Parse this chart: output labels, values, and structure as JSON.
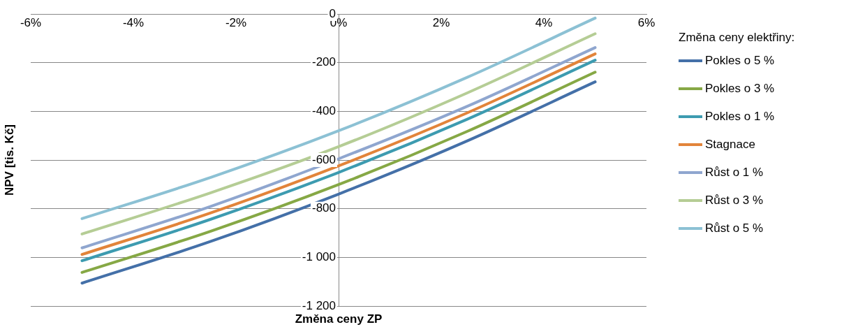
{
  "chart_data": {
    "type": "line",
    "xlabel": "Změna ceny ZP",
    "ylabel": "NPV [tis. Kč]",
    "legend_title": "Změna ceny elektřiny:",
    "x": [
      -5,
      -2.5,
      0,
      2.5,
      5
    ],
    "series": [
      {
        "name": "Pokles o 5 %",
        "color": "#4470a8",
        "values": [
          -1106,
          -935,
          -740,
          -522,
          -279
        ]
      },
      {
        "name": "Pokles o 3 %",
        "color": "#86a845",
        "values": [
          -1062,
          -893,
          -701,
          -483,
          -239
        ]
      },
      {
        "name": "Pokles o 1 %",
        "color": "#3d9bb0",
        "values": [
          -1014,
          -844,
          -651,
          -433,
          -190
        ]
      },
      {
        "name": "Stagnace",
        "color": "#e2843a",
        "values": [
          -988,
          -818,
          -624,
          -407,
          -164
        ]
      },
      {
        "name": "Růst o 1 %",
        "color": "#8fa6cf",
        "values": [
          -961,
          -791,
          -595,
          -380,
          -138
        ]
      },
      {
        "name": "Růst o 3 %",
        "color": "#b5cd95",
        "values": [
          -904,
          -735,
          -545,
          -325,
          -81
        ]
      },
      {
        "name": "Růst o 5 %",
        "color": "#8cc1d4",
        "values": [
          -841,
          -672,
          -480,
          -261,
          -17
        ]
      }
    ],
    "xlim": [
      -6,
      6
    ],
    "xticks": [
      {
        "value": -6,
        "label": "-6%"
      },
      {
        "value": -4,
        "label": "-4%"
      },
      {
        "value": -2,
        "label": "-2%"
      },
      {
        "value": 0,
        "label": "0%"
      },
      {
        "value": 2,
        "label": "2%"
      },
      {
        "value": 4,
        "label": "4%"
      },
      {
        "value": 6,
        "label": "6%"
      }
    ],
    "ylim": [
      -1200,
      0
    ],
    "yticks": [
      0,
      -200,
      -400,
      -600,
      -800,
      {
        "value": -1000,
        "label": "-1 000"
      },
      {
        "value": -1200,
        "label": "-1 200"
      }
    ],
    "grid": "y",
    "legend": "right",
    "marker": "none",
    "line_style": "solid"
  }
}
